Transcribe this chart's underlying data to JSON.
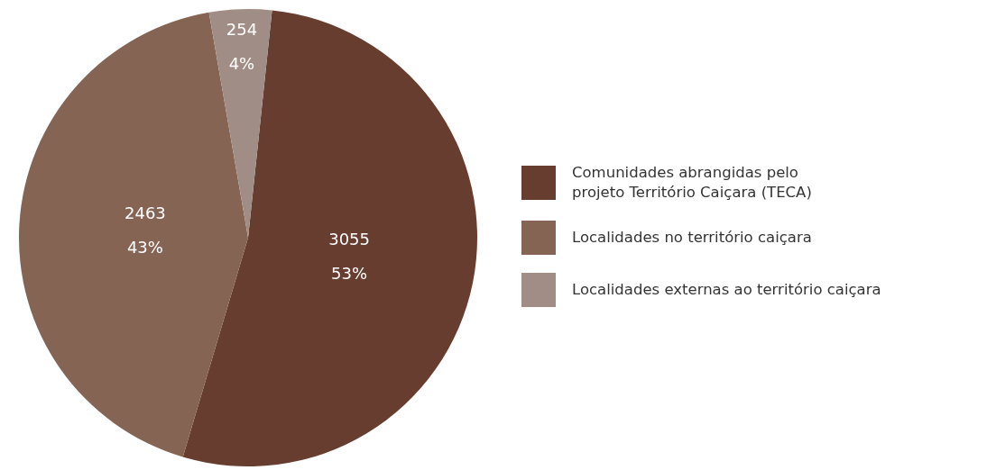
{
  "chart_data": {
    "type": "pie",
    "categories": [
      "Comunidades abrangidas pelo projeto Território Caiçara (TECA)",
      "Localidades no território caiçara",
      "Localidades externas ao território caiçara"
    ],
    "values": [
      3055,
      2463,
      254
    ],
    "colors": [
      "#673d30",
      "#866454",
      "#a08d85"
    ],
    "value_labels": [
      "3055\n53%",
      "2463\n43%",
      "254\n4%"
    ],
    "legend": "right"
  }
}
